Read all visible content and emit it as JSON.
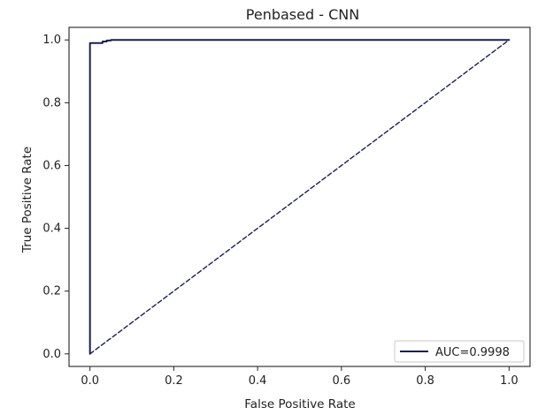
{
  "chart_data": {
    "type": "line",
    "title": "Penbased - CNN",
    "xlabel": "False Positive Rate",
    "ylabel": "True Positive Rate",
    "xlim": [
      -0.05,
      1.05
    ],
    "ylim": [
      -0.04,
      1.04
    ],
    "xticks": [
      0.0,
      0.2,
      0.4,
      0.6,
      0.8,
      1.0
    ],
    "yticks": [
      0.0,
      0.2,
      0.4,
      0.6,
      0.8,
      1.0
    ],
    "xtick_labels": [
      "0.0",
      "0.2",
      "0.4",
      "0.6",
      "0.8",
      "1.0"
    ],
    "ytick_labels": [
      "0.0",
      "0.2",
      "0.4",
      "0.6",
      "0.8",
      "1.0"
    ],
    "grid": false,
    "legend_position": "lower-right",
    "series": [
      {
        "name": "AUC=0.9998",
        "style": "solid",
        "color": "#1b1f4f",
        "x": [
          0.0,
          0.0,
          0.0,
          0.03,
          0.03,
          0.04,
          0.04,
          0.05,
          0.05,
          1.0
        ],
        "y": [
          0.0,
          0.99,
          0.99,
          0.99,
          0.995,
          0.995,
          0.998,
          0.998,
          1.0,
          1.0
        ]
      },
      {
        "style": "dashed",
        "color": "#1b1f4f",
        "x": [
          0.0,
          1.0
        ],
        "y": [
          0.0,
          1.0
        ]
      }
    ]
  }
}
